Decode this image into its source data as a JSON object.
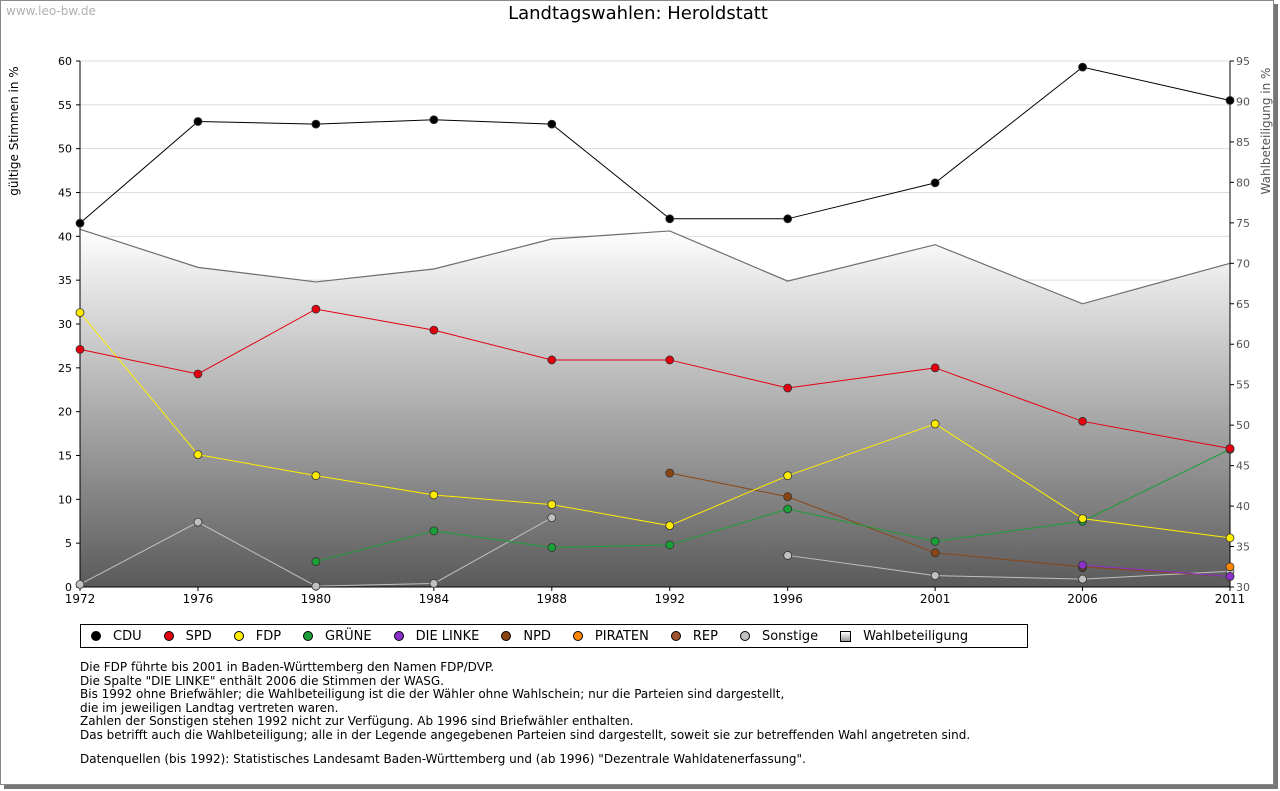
{
  "watermark": "www.leo-bw.de",
  "chart_data": {
    "type": "line",
    "title": "Landtagswahlen: Heroldstatt",
    "ylabel": "gültige Stimmen in %",
    "ylabel_right": "Wahlbeteiligung in %",
    "ylim": [
      0,
      60
    ],
    "ylim_right": [
      30,
      95
    ],
    "yticks": [
      "0",
      "5",
      "10",
      "15",
      "20",
      "25",
      "30",
      "35",
      "40",
      "45",
      "50",
      "55",
      "60"
    ],
    "yticks_right": [
      "30",
      "35",
      "40",
      "45",
      "50",
      "55",
      "60",
      "65",
      "70",
      "75",
      "80",
      "85",
      "90",
      "95"
    ],
    "categories": [
      "1972",
      "1976",
      "1980",
      "1984",
      "1988",
      "1992",
      "1996",
      "2001",
      "2006",
      "2011"
    ],
    "series": [
      {
        "name": "CDU",
        "color": "#000000",
        "values": [
          41.5,
          53.1,
          52.8,
          53.3,
          52.8,
          42.0,
          42.0,
          46.1,
          59.3,
          55.5
        ]
      },
      {
        "name": "SPD",
        "color": "#e3000f",
        "values": [
          27.1,
          24.3,
          31.7,
          29.3,
          25.9,
          25.9,
          22.7,
          25.0,
          18.9,
          15.8
        ]
      },
      {
        "name": "FDP",
        "color": "#ffed00",
        "values": [
          31.3,
          15.1,
          12.7,
          10.5,
          9.4,
          7.0,
          12.7,
          18.6,
          7.8,
          5.6
        ]
      },
      {
        "name": "GRÜNE",
        "color": "#1aa037",
        "values": [
          null,
          null,
          2.9,
          6.4,
          4.5,
          4.8,
          8.9,
          5.2,
          7.5,
          15.7
        ]
      },
      {
        "name": "DIE LINKE",
        "color": "#8b2fc9",
        "values": [
          null,
          null,
          null,
          null,
          null,
          null,
          null,
          null,
          2.5,
          1.2
        ]
      },
      {
        "name": "NPD",
        "color": "#8b4513",
        "values": [
          null,
          null,
          null,
          null,
          null,
          13.0,
          10.3,
          3.9,
          2.3,
          1.2
        ]
      },
      {
        "name": "PIRATEN",
        "color": "#ff8800",
        "values": [
          null,
          null,
          null,
          null,
          null,
          null,
          null,
          null,
          null,
          2.3
        ]
      },
      {
        "name": "REP",
        "color": "#a0522d",
        "values": [
          null,
          null,
          null,
          null,
          null,
          null,
          null,
          null,
          2.2,
          null
        ]
      },
      {
        "name": "Sonstige",
        "color": "#c0c0c0",
        "values": [
          0.3,
          7.4,
          0.1,
          0.4,
          7.9,
          null,
          3.6,
          1.3,
          0.9,
          1.8
        ]
      }
    ],
    "turnout": {
      "name": "Wahlbeteiligung",
      "values": [
        74.2,
        69.5,
        67.7,
        69.3,
        73.0,
        74.0,
        67.8,
        72.3,
        65.0,
        70.0
      ]
    }
  },
  "legend": [
    "CDU",
    "SPD",
    "FDP",
    "GRÜNE",
    "DIE LINKE",
    "NPD",
    "PIRATEN",
    "REP",
    "Sonstige",
    "Wahlbeteiligung"
  ],
  "notes": [
    "Die FDP führte bis 2001 in Baden-Württemberg den Namen FDP/DVP.",
    "Die Spalte \"DIE LINKE\" enthält 2006 die Stimmen der WASG.",
    "Bis 1992 ohne Briefwähler; die Wahlbeteiligung ist die der Wähler ohne Wahlschein; nur die Parteien sind dargestellt,",
    "die im jeweiligen Landtag vertreten waren.",
    "Zahlen der Sonstigen stehen 1992 nicht zur Verfügung. Ab 1996 sind Briefwähler enthalten.",
    "Das betrifft auch die Wahlbeteiligung; alle in der Legende angegebenen Parteien sind dargestellt, soweit sie zur betreffenden Wahl angetreten sind."
  ],
  "source": "Datenquellen (bis 1992): Statistisches Landesamt Baden-Württemberg und (ab 1996) \"Dezentrale Wahldatenerfassung\"."
}
